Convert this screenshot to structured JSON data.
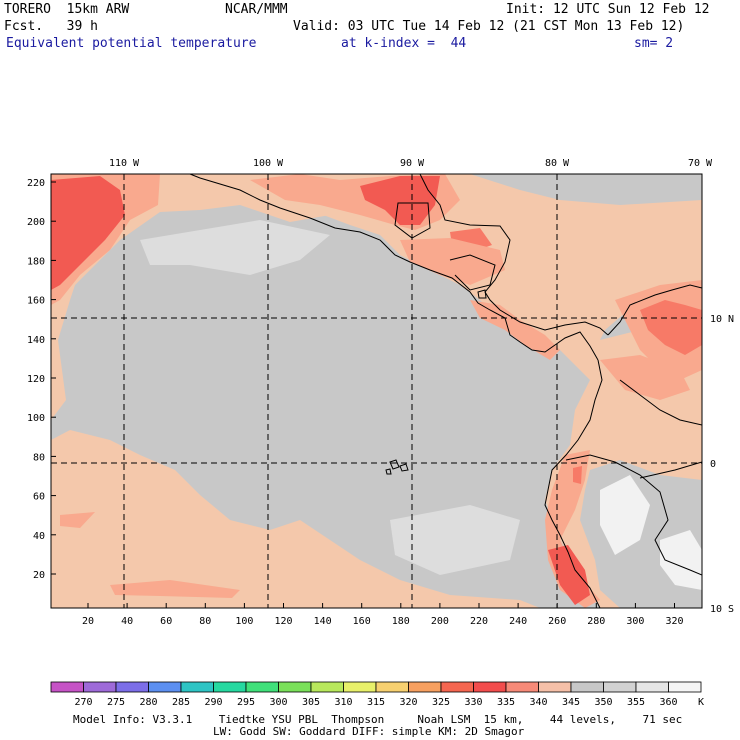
{
  "header": {
    "model": "TORERO  15km ARW",
    "org": "NCAR/MMM",
    "init": "Init: 12 UTC Sun 12 Feb 12",
    "fcst": "Fcst.   39 h",
    "valid": "Valid: 03 UTC Tue 14 Feb 12 (21 CST Mon 13 Feb 12)",
    "field": "Equivalent potential temperature",
    "level": "at k-index =  44",
    "smooth": "sm= 2"
  },
  "map": {
    "lon_labels": [
      "110 W",
      "100 W",
      "90 W",
      "80 W",
      "70 W"
    ],
    "lat_labels": [
      "10 N",
      "0",
      "10 S"
    ],
    "y_ticks": [
      "220",
      "200",
      "180",
      "160",
      "140",
      "120",
      "100",
      "80",
      "60",
      "40",
      "20"
    ],
    "x_ticks": [
      "20",
      "40",
      "60",
      "80",
      "100",
      "120",
      "140",
      "160",
      "180",
      "200",
      "220",
      "240",
      "260",
      "280",
      "300",
      "320"
    ],
    "colors": {
      "ocean": "#c8c8c8",
      "land_warm": "#f4c8ab",
      "warm1": "#f9a98e",
      "warm2": "#f77a67",
      "warm3": "#f25a52",
      "cool": "#dddddd",
      "coast": "#000000"
    }
  },
  "colorbar": {
    "unit": "K",
    "labels": [
      "270",
      "275",
      "280",
      "285",
      "290",
      "295",
      "300",
      "305",
      "310",
      "315",
      "320",
      "325",
      "330",
      "335",
      "340",
      "345",
      "350",
      "355",
      "360"
    ],
    "colors": [
      "#c653c6",
      "#9e6ad8",
      "#7c6ee8",
      "#5c8ff0",
      "#2ec4c4",
      "#26d8a0",
      "#40e07a",
      "#7ae05a",
      "#b8e85c",
      "#e8f06a",
      "#f7d070",
      "#f7a060",
      "#f56650",
      "#f24d4d",
      "#f78a78",
      "#f6c0a8",
      "#c8c8c8",
      "#d2d2d2",
      "#e6e6e6",
      "#f6f6f6"
    ]
  },
  "footer": {
    "line1": "Model Info: V3.3.1    Tiedtke YSU PBL  Thompson     Noah LSM  15 km,    44 levels,    71 sec",
    "line2": "LW: Godd SW: Goddard DIFF: simple KM: 2D Smagor"
  }
}
